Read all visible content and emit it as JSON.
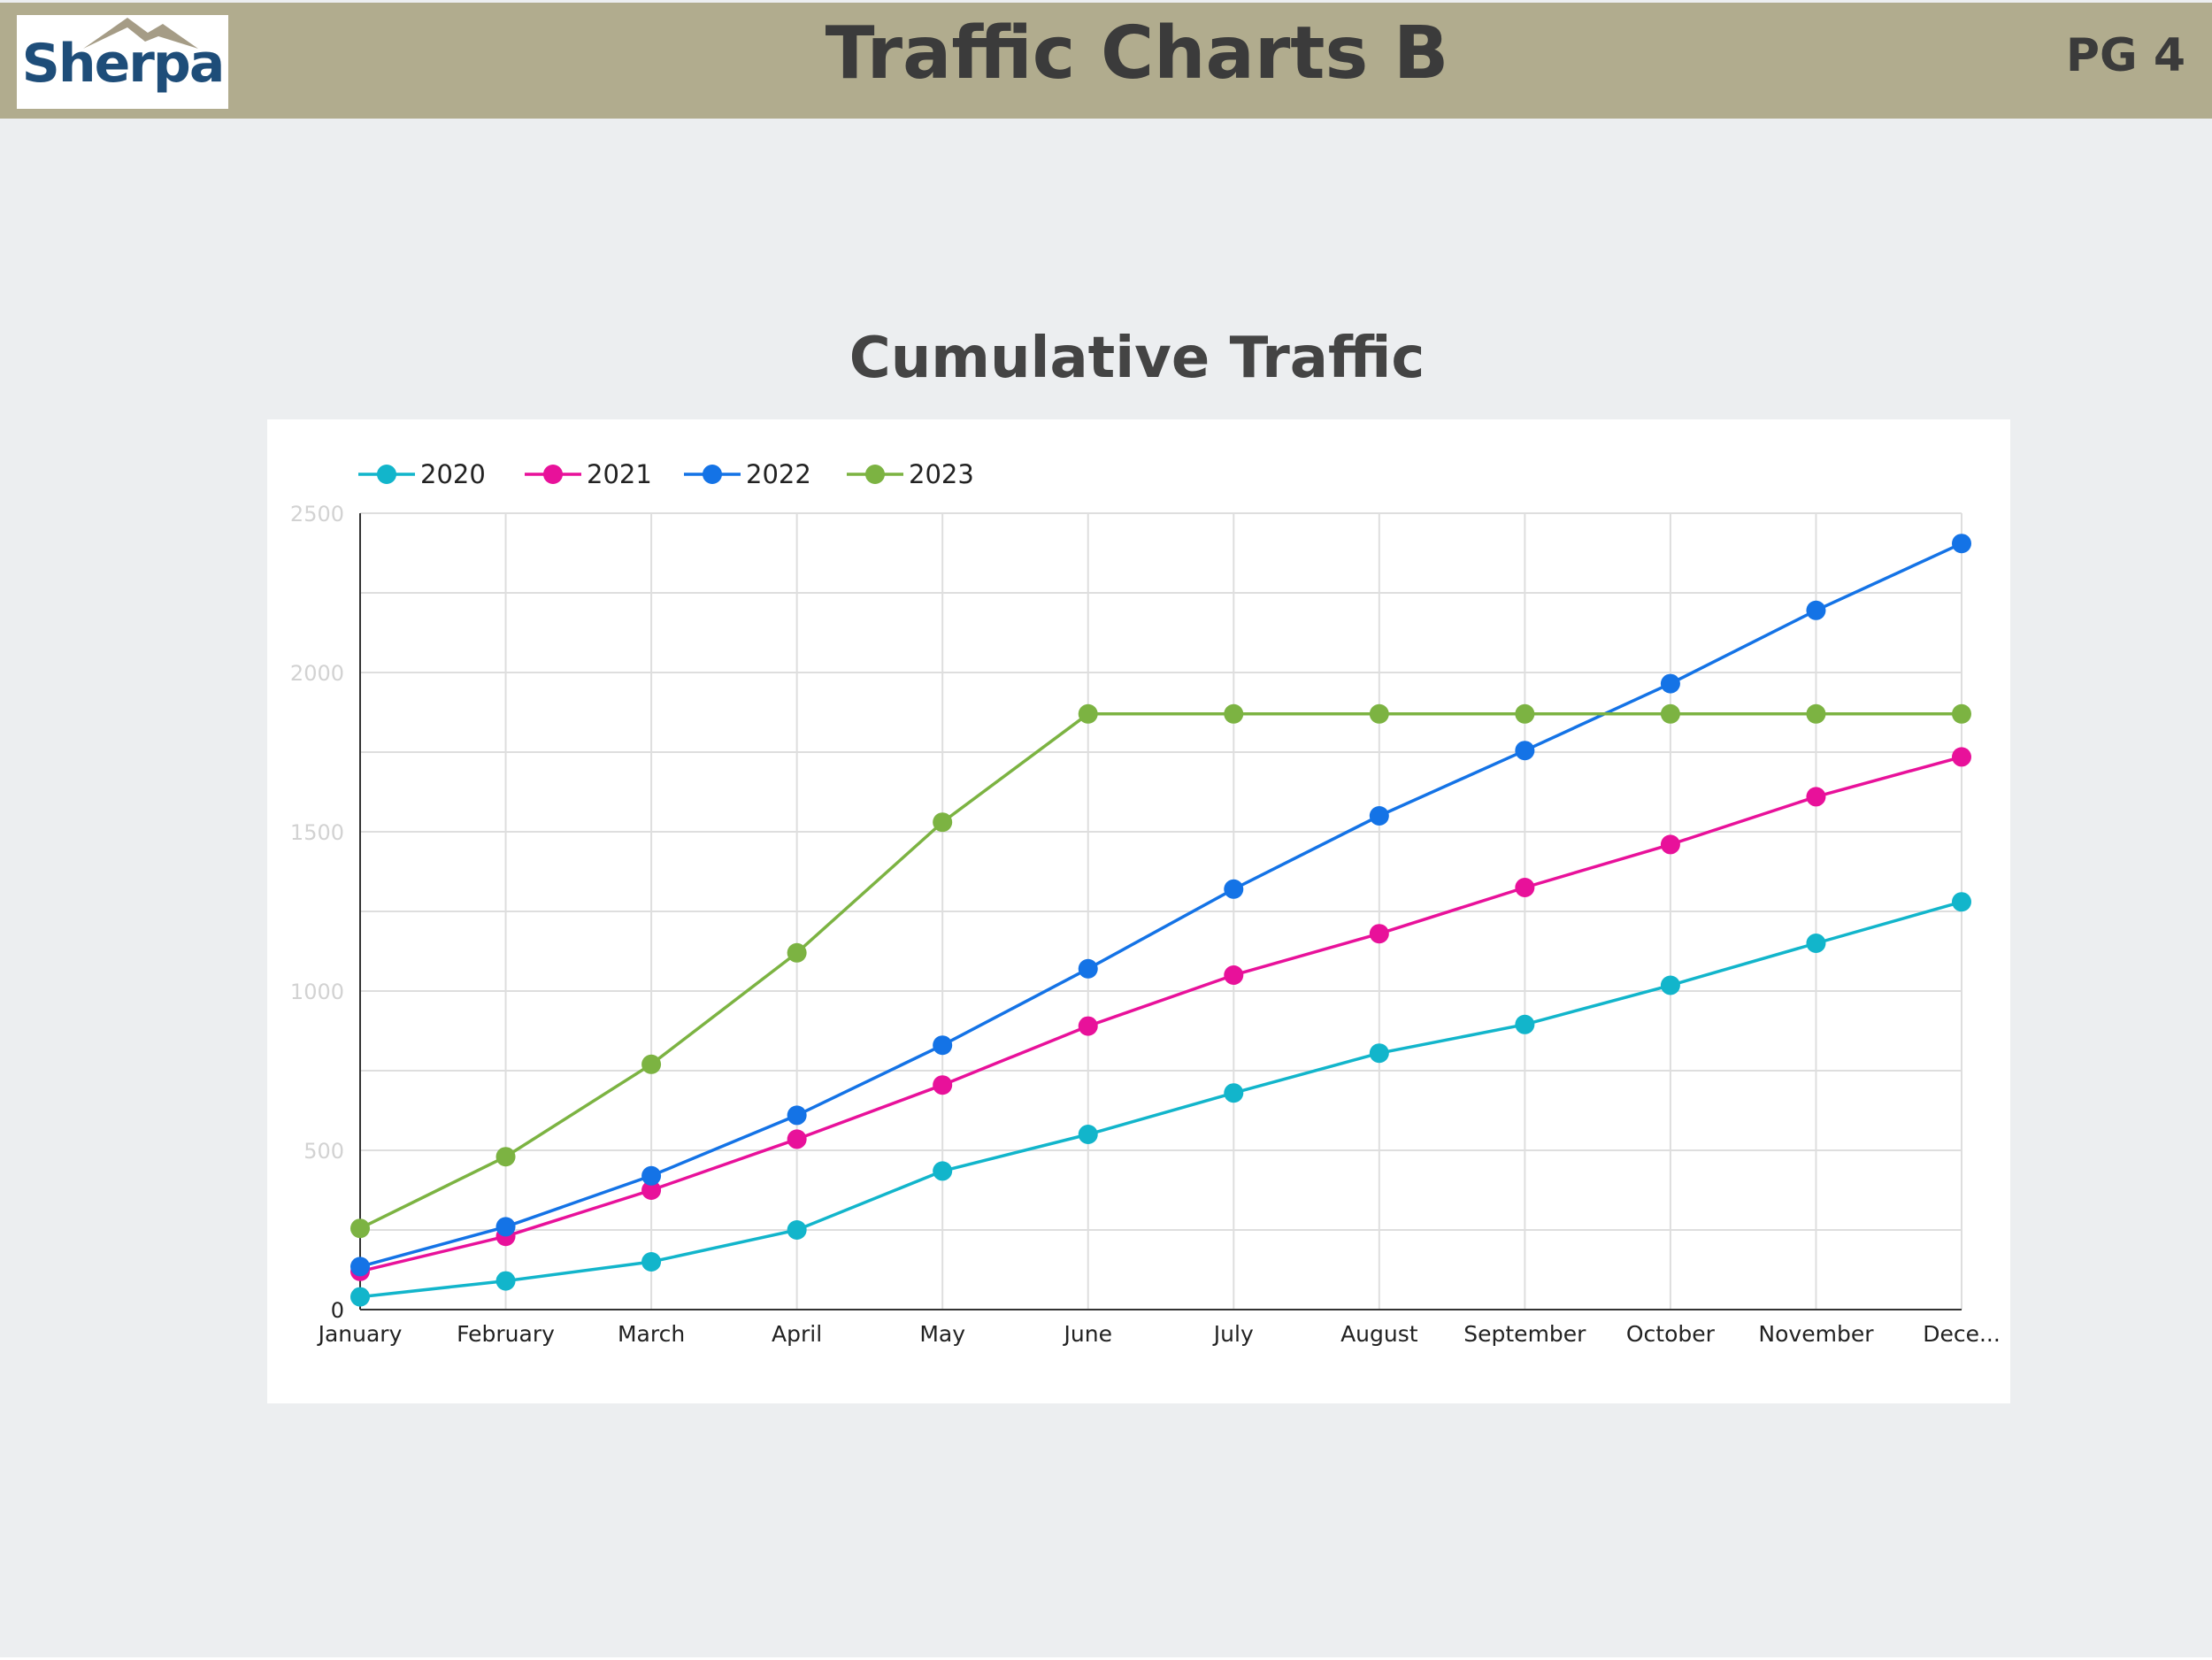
{
  "header": {
    "logo_text": "Sherpa",
    "title": "Traffic Charts B",
    "page_number": "PG 4"
  },
  "chart_heading": "Cumulative Traffic",
  "chart_data": {
    "type": "line",
    "title": "Cumulative Traffic",
    "xlabel": "",
    "ylabel": "",
    "categories": [
      "January",
      "February",
      "March",
      "April",
      "May",
      "June",
      "July",
      "August",
      "September",
      "October",
      "November",
      "Dece..."
    ],
    "ylim": [
      0,
      2500
    ],
    "y_ticks": [
      "0",
      "500",
      "1000",
      "1500",
      "2000",
      "2500"
    ],
    "grid": true,
    "legend_position": "top-left",
    "marker": "circle",
    "series": [
      {
        "name": "2020",
        "color": "#12b5cb",
        "values": [
          40,
          90,
          150,
          250,
          435,
          550,
          680,
          805,
          895,
          1018,
          1150,
          1280
        ]
      },
      {
        "name": "2021",
        "color": "#e8119a",
        "values": [
          120,
          230,
          375,
          535,
          705,
          890,
          1050,
          1180,
          1325,
          1460,
          1610,
          1735
        ]
      },
      {
        "name": "2022",
        "color": "#1473e6",
        "values": [
          135,
          260,
          420,
          610,
          830,
          1070,
          1320,
          1550,
          1755,
          1965,
          2195,
          2405
        ]
      },
      {
        "name": "2023",
        "color": "#7cb342",
        "values": [
          255,
          480,
          770,
          1120,
          1530,
          1870,
          1870,
          1870,
          1870,
          1870,
          1870,
          1870
        ]
      }
    ]
  }
}
